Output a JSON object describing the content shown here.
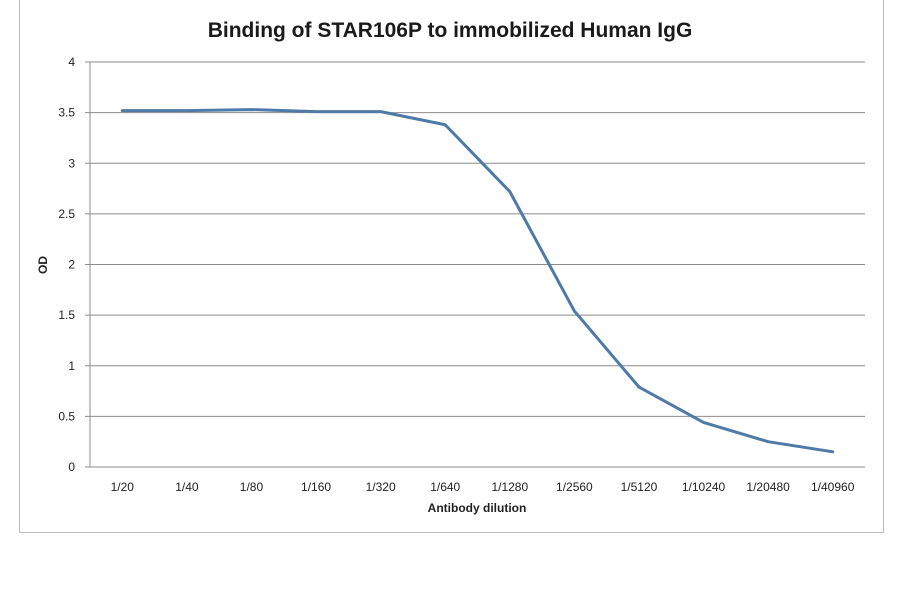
{
  "chart_data": {
    "type": "line",
    "title": "Binding of STAR106P to immobilized Human IgG",
    "xlabel": "Antibody dilution",
    "ylabel": "OD",
    "categories": [
      "1/20",
      "1/40",
      "1/80",
      "1/160",
      "1/320",
      "1/640",
      "1/1280",
      "1/2560",
      "1/5120",
      "1/10240",
      "1/20480",
      "1/40960"
    ],
    "series": [
      {
        "values": [
          3.52,
          3.52,
          3.53,
          3.51,
          3.51,
          3.38,
          2.72,
          1.54,
          0.79,
          0.44,
          0.25,
          0.15
        ]
      }
    ],
    "ylim": [
      0,
      4
    ],
    "yticks": [
      "0",
      "0.5",
      "1",
      "1.5",
      "2",
      "2.5",
      "3",
      "3.5",
      "4"
    ],
    "grid": true,
    "legend": "none",
    "colors": {
      "line": "#4F7AA8",
      "grid": "#8c8c8c",
      "axis": "#8c8c8c"
    }
  }
}
